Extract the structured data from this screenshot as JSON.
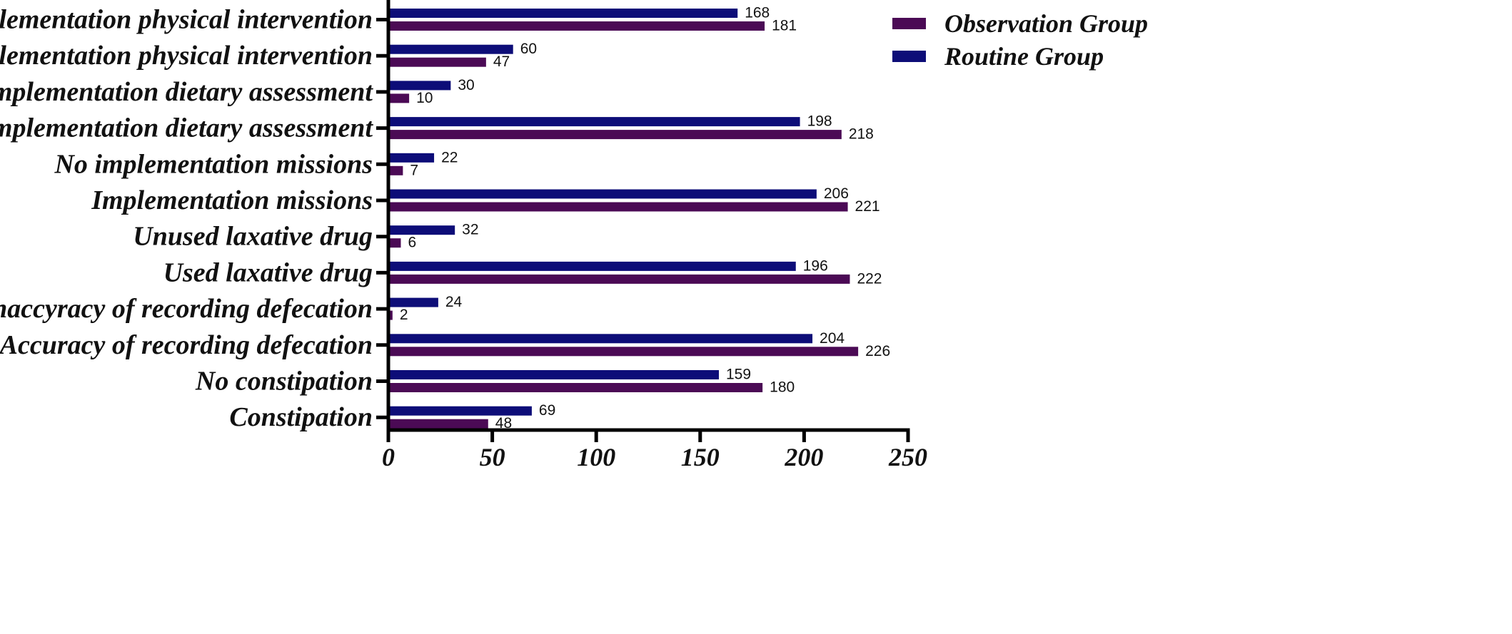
{
  "chart_data": {
    "type": "bar",
    "orientation": "horizontal",
    "categories": [
      "No implementation physical intervention",
      "Implementation physical intervention",
      "No implementation dietary assessment",
      "Implementation dietary assessment",
      "No  implementation missions",
      "Implementation missions",
      "Unused laxative drug",
      "Used laxative drug",
      "Unaccyracy of recording defecation",
      "Accuracy of recording defecation",
      "No constipation",
      "Constipation"
    ],
    "series": [
      {
        "name": "Routine Group",
        "color": "#0d0d78",
        "values": [
          168,
          60,
          30,
          198,
          22,
          206,
          32,
          196,
          24,
          204,
          159,
          69
        ]
      },
      {
        "name": "Observation Group",
        "color": "#4b0a55",
        "values": [
          181,
          47,
          10,
          218,
          7,
          221,
          6,
          222,
          2,
          226,
          180,
          48
        ]
      }
    ],
    "xlim": [
      0,
      250
    ],
    "xticks": [
      0,
      50,
      100,
      150,
      200,
      250
    ],
    "title": "",
    "xlabel": "",
    "ylabel": "",
    "grid": false,
    "legend": {
      "position": "top-right",
      "order": [
        "Observation Group",
        "Routine Group"
      ]
    }
  }
}
